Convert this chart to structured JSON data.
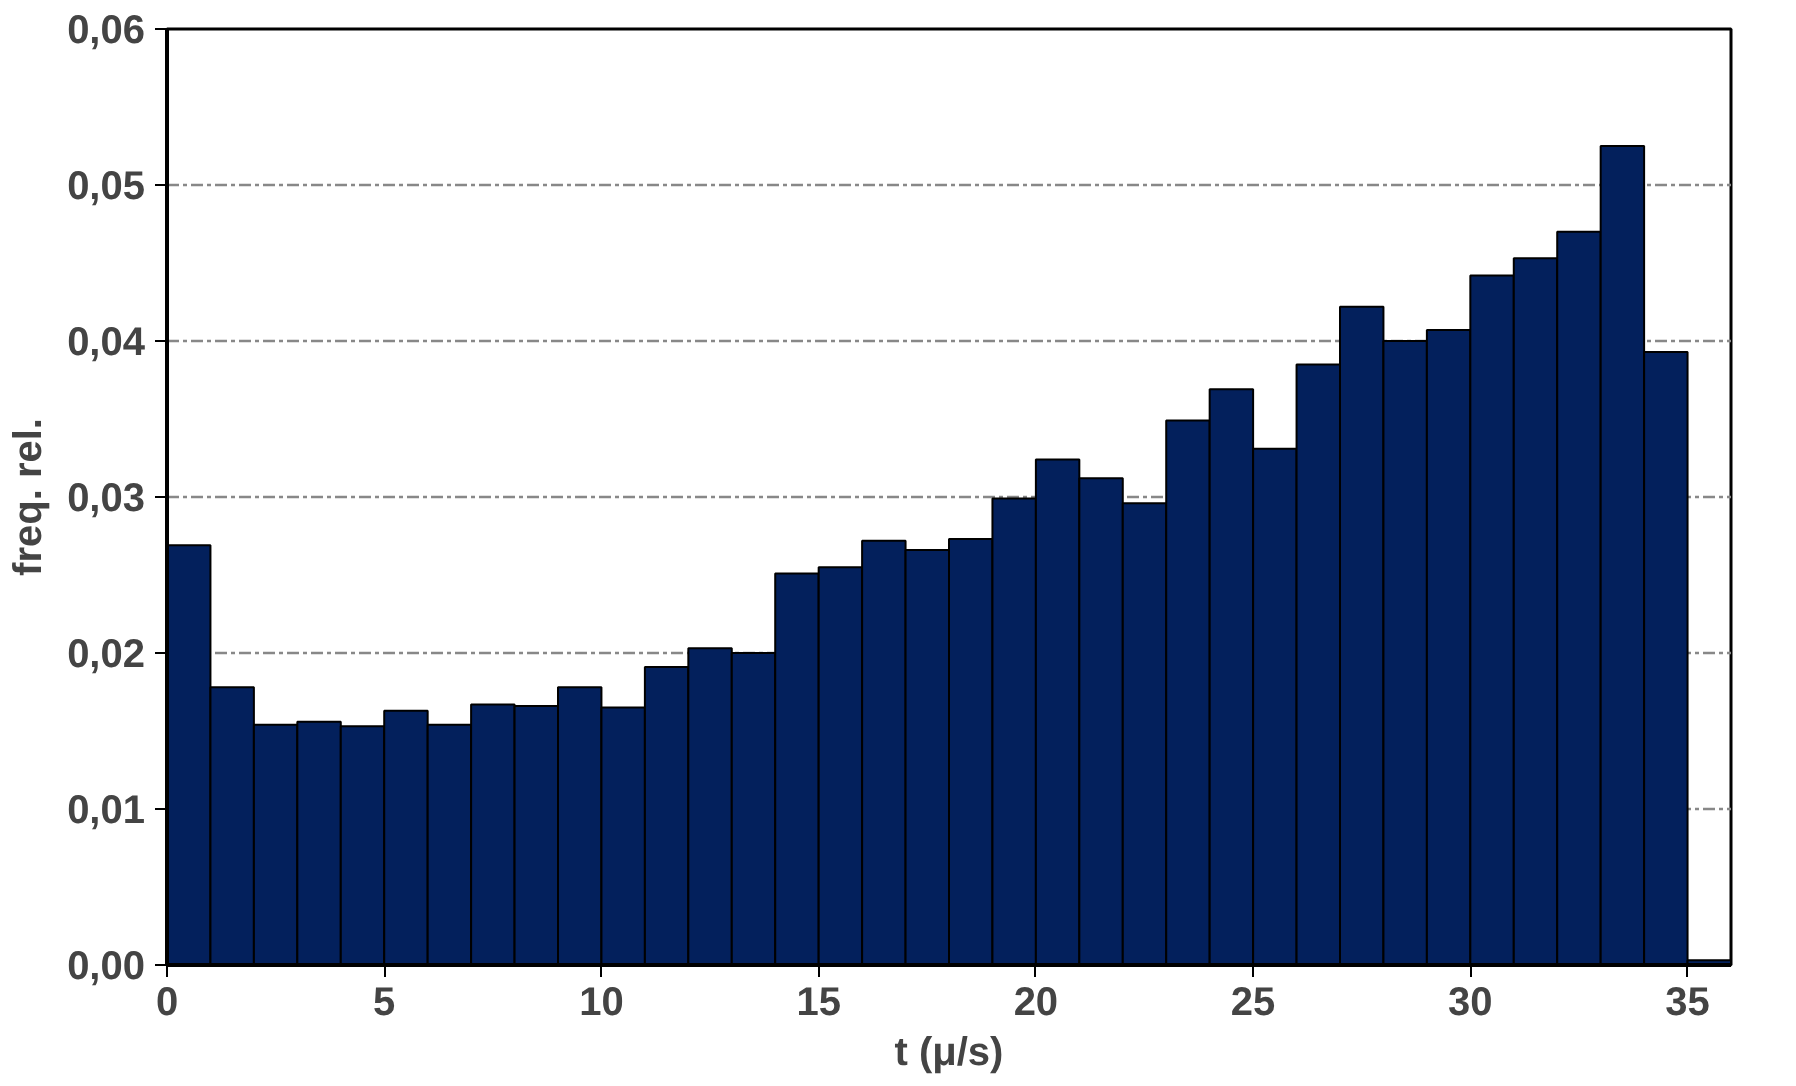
{
  "chart_data": {
    "type": "histogram",
    "xlabel": "t (μ/s)",
    "ylabel": "freq. rel.",
    "bins": [
      0,
      1,
      2,
      3,
      4,
      5,
      6,
      7,
      8,
      9,
      10,
      11,
      12,
      13,
      14,
      15,
      16,
      17,
      18,
      19,
      20,
      21,
      22,
      23,
      24,
      25,
      26,
      27,
      28,
      29,
      30,
      31,
      32,
      33,
      34,
      35,
      36
    ],
    "values": [
      0.0269,
      0.0178,
      0.0154,
      0.0156,
      0.0153,
      0.0163,
      0.0154,
      0.0167,
      0.0166,
      0.0178,
      0.0165,
      0.0191,
      0.0203,
      0.02,
      0.0251,
      0.0255,
      0.0272,
      0.0266,
      0.0273,
      0.0299,
      0.0324,
      0.0312,
      0.0296,
      0.0349,
      0.0369,
      0.0331,
      0.0385,
      0.0422,
      0.04,
      0.0407,
      0.0442,
      0.0453,
      0.047,
      0.0525,
      0.0393,
      0.0003
    ],
    "color": "#03205c",
    "xlim": [
      0,
      36
    ],
    "xticks": [
      0,
      5,
      10,
      15,
      20,
      25,
      30,
      35
    ],
    "ylim": [
      0,
      0.06
    ],
    "yticks": [
      {
        "value": 0,
        "label": "0,00"
      },
      {
        "value": 0.01,
        "label": "0,01"
      },
      {
        "value": 0.02,
        "label": "0,02"
      },
      {
        "value": 0.03,
        "label": "0,03"
      },
      {
        "value": 0.04,
        "label": "0,04"
      },
      {
        "value": 0.05,
        "label": "0,05"
      },
      {
        "value": 0.06,
        "label": "0,06"
      }
    ],
    "grid": "y"
  }
}
